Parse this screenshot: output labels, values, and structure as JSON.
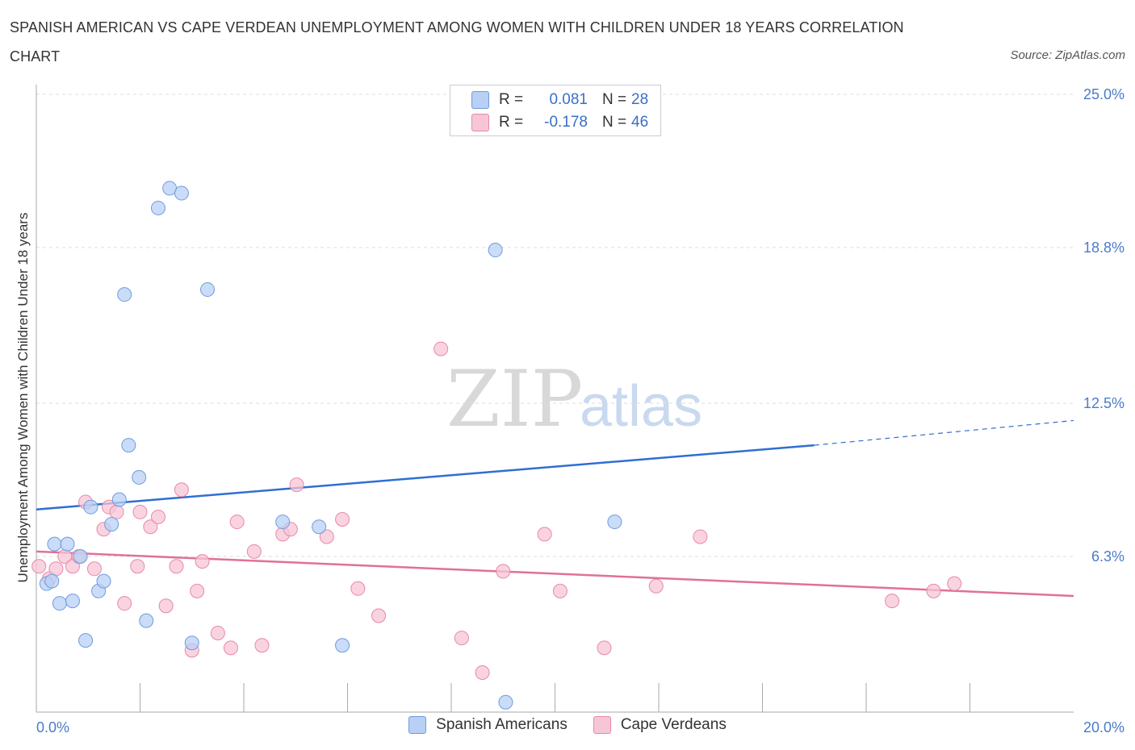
{
  "header": {
    "title": "SPANISH AMERICAN VS CAPE VERDEAN UNEMPLOYMENT AMONG WOMEN WITH CHILDREN UNDER 18 YEARS CORRELATION CHART",
    "source": "Source: ZipAtlas.com"
  },
  "watermark": {
    "zip": "ZIP",
    "atlas": "atlas"
  },
  "legend": {
    "r_label": "R =",
    "n_label": "N =",
    "series": [
      {
        "r": "0.081",
        "n": "28"
      },
      {
        "r": "-0.178",
        "n": "46"
      }
    ]
  },
  "colors": {
    "blue_fill": "#b8d0f4",
    "blue_stroke": "#6f9be0",
    "blue_line": "#2f6fd0",
    "pink_fill": "#f7c6d6",
    "pink_stroke": "#e888a8",
    "pink_line": "#e0709a",
    "axis_text": "#4a7cc9",
    "grid": "#dddddd"
  },
  "chart_data": {
    "type": "scatter",
    "xlabel": "",
    "ylabel": "Unemployment Among Women with Children Under 18 years",
    "xlim": [
      0,
      20
    ],
    "ylim": [
      0,
      25
    ],
    "x_tick_labels": [
      "0.0%",
      "20.0%"
    ],
    "y_ticks": [
      6.3,
      12.5,
      18.8,
      25.0
    ],
    "y_tick_labels": [
      "6.3%",
      "12.5%",
      "18.8%",
      "25.0%"
    ],
    "grid": true,
    "legend_position": "bottom",
    "series": [
      {
        "name": "Spanish Americans",
        "color": "#b8d0f4",
        "points": [
          [
            0.2,
            5.2
          ],
          [
            0.3,
            5.3
          ],
          [
            0.35,
            6.8
          ],
          [
            0.45,
            4.4
          ],
          [
            0.6,
            6.8
          ],
          [
            0.7,
            4.5
          ],
          [
            0.85,
            6.3
          ],
          [
            0.95,
            2.9
          ],
          [
            1.05,
            8.3
          ],
          [
            1.2,
            4.9
          ],
          [
            1.3,
            5.3
          ],
          [
            1.45,
            7.6
          ],
          [
            1.6,
            8.6
          ],
          [
            1.7,
            16.9
          ],
          [
            1.78,
            10.8
          ],
          [
            1.98,
            9.5
          ],
          [
            2.12,
            3.7
          ],
          [
            2.35,
            20.4
          ],
          [
            2.57,
            21.2
          ],
          [
            2.8,
            21.0
          ],
          [
            3.0,
            2.8
          ],
          [
            3.3,
            17.1
          ],
          [
            4.75,
            7.7
          ],
          [
            5.45,
            7.5
          ],
          [
            5.9,
            2.7
          ],
          [
            8.85,
            18.7
          ],
          [
            9.05,
            0.4
          ],
          [
            11.15,
            7.7
          ]
        ]
      },
      {
        "name": "Cape Verdeans",
        "color": "#f7c6d6",
        "points": [
          [
            0.05,
            5.9
          ],
          [
            0.25,
            5.4
          ],
          [
            0.38,
            5.8
          ],
          [
            0.55,
            6.3
          ],
          [
            0.7,
            5.9
          ],
          [
            0.82,
            6.3
          ],
          [
            0.95,
            8.5
          ],
          [
            1.12,
            5.8
          ],
          [
            1.3,
            7.4
          ],
          [
            1.4,
            8.3
          ],
          [
            1.55,
            8.1
          ],
          [
            1.7,
            4.4
          ],
          [
            1.95,
            5.9
          ],
          [
            2.0,
            8.1
          ],
          [
            2.2,
            7.5
          ],
          [
            2.35,
            7.9
          ],
          [
            2.5,
            4.3
          ],
          [
            2.7,
            5.9
          ],
          [
            2.8,
            9.0
          ],
          [
            3.0,
            2.5
          ],
          [
            3.1,
            4.9
          ],
          [
            3.2,
            6.1
          ],
          [
            3.5,
            3.2
          ],
          [
            3.75,
            2.6
          ],
          [
            3.87,
            7.7
          ],
          [
            4.2,
            6.5
          ],
          [
            4.35,
            2.7
          ],
          [
            4.75,
            7.2
          ],
          [
            4.9,
            7.4
          ],
          [
            5.02,
            9.2
          ],
          [
            5.6,
            7.1
          ],
          [
            5.9,
            7.8
          ],
          [
            6.2,
            5.0
          ],
          [
            6.6,
            3.9
          ],
          [
            7.8,
            14.7
          ],
          [
            8.2,
            3.0
          ],
          [
            8.6,
            1.6
          ],
          [
            9.0,
            5.7
          ],
          [
            9.8,
            7.2
          ],
          [
            10.1,
            4.9
          ],
          [
            10.95,
            2.6
          ],
          [
            11.95,
            5.1
          ],
          [
            12.8,
            7.1
          ],
          [
            16.5,
            4.5
          ],
          [
            17.3,
            4.9
          ],
          [
            17.7,
            5.2
          ]
        ]
      }
    ],
    "trend_lines": [
      {
        "series": "Spanish Americans",
        "x": [
          0,
          15,
          20
        ],
        "y": [
          8.2,
          10.8,
          11.8
        ],
        "dashed_from_x": 15
      },
      {
        "series": "Cape Verdeans",
        "x": [
          0,
          20
        ],
        "y": [
          6.5,
          4.7
        ]
      }
    ]
  },
  "bottom_legend": {
    "items": [
      {
        "label": "Spanish Americans"
      },
      {
        "label": "Cape Verdeans"
      }
    ]
  }
}
